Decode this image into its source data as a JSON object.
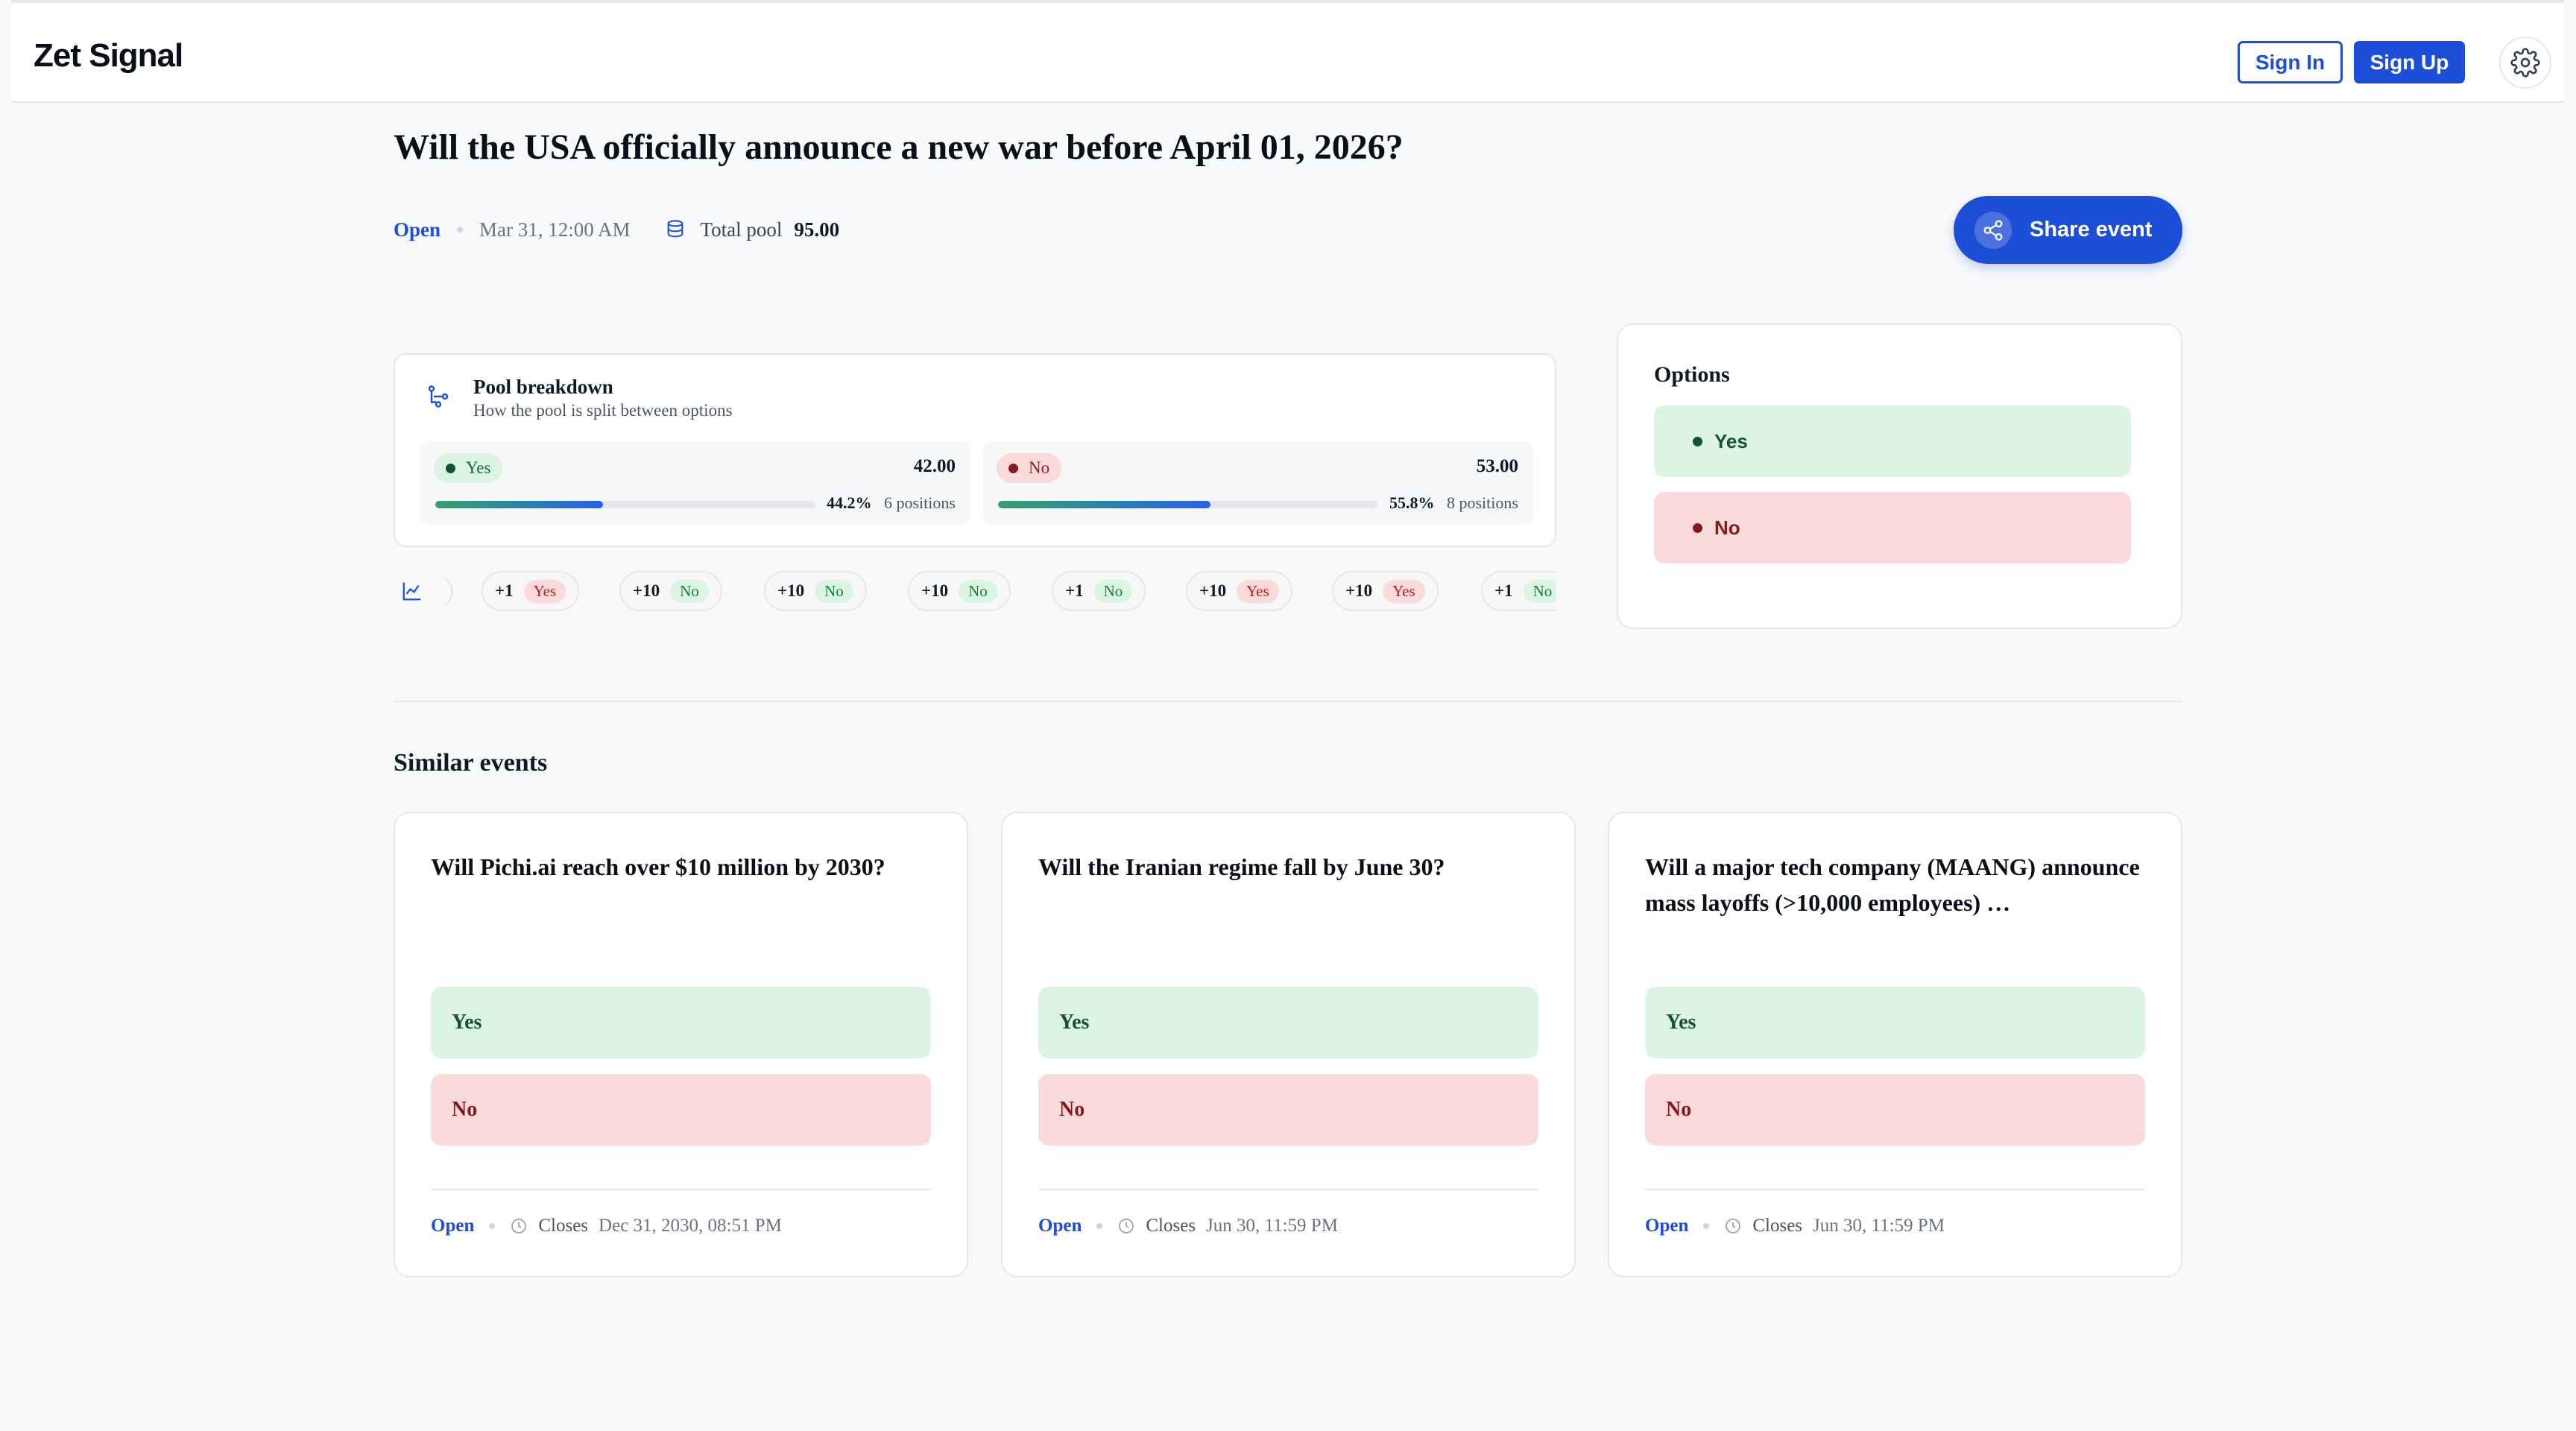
{
  "header": {
    "brand": "Zet Signal",
    "sign_in": "Sign In",
    "sign_up": "Sign Up",
    "settings_icon": "gear-icon"
  },
  "event": {
    "title": "Will the USA officially announce a new war before April 01, 2026?",
    "status": "Open",
    "date": "Mar 31, 12:00 AM",
    "pool_label": "Total pool",
    "pool_value": "95.00",
    "share_label": "Share event"
  },
  "pool_breakdown": {
    "title": "Pool breakdown",
    "subtitle": "How the pool is split between options",
    "options": [
      {
        "label": "Yes",
        "amount": "42.00",
        "percent_text": "44.2%",
        "fraction": 0.442,
        "positions": "6 positions"
      },
      {
        "label": "No",
        "amount": "53.00",
        "percent_text": "55.8%",
        "fraction": 0.558,
        "positions": "8 positions"
      }
    ]
  },
  "activity": [
    {
      "amount": "+1",
      "option": "Yes"
    },
    {
      "amount": "+10",
      "option": "No"
    },
    {
      "amount": "+10",
      "option": "No"
    },
    {
      "amount": "+10",
      "option": "No"
    },
    {
      "amount": "+1",
      "option": "No"
    },
    {
      "amount": "+10",
      "option": "Yes"
    },
    {
      "amount": "+10",
      "option": "Yes"
    },
    {
      "amount": "+1",
      "option": "No"
    }
  ],
  "options_card": {
    "title": "Options",
    "yes": "Yes",
    "no": "No"
  },
  "similar": {
    "title": "Similar events",
    "events": [
      {
        "question": "Will Pichi.ai reach over $10 million by 2030?",
        "yes": "Yes",
        "no": "No",
        "status": "Open",
        "closes_label": "Closes",
        "closes": "Dec 31, 2030, 08:51 PM"
      },
      {
        "question": "Will the Iranian regime fall by June 30?",
        "yes": "Yes",
        "no": "No",
        "status": "Open",
        "closes_label": "Closes",
        "closes": "Jun 30, 11:59 PM"
      },
      {
        "question": "Will a major tech company (MAANG) announce mass layoffs (>10,000 employees) …",
        "yes": "Yes",
        "no": "No",
        "status": "Open",
        "closes_label": "Closes",
        "closes": "Jun 30, 11:59 PM"
      }
    ]
  },
  "colors": {
    "accent": "#1d4ed8",
    "yes_bg": "#dcf5e3",
    "no_bg": "#fadadb"
  }
}
